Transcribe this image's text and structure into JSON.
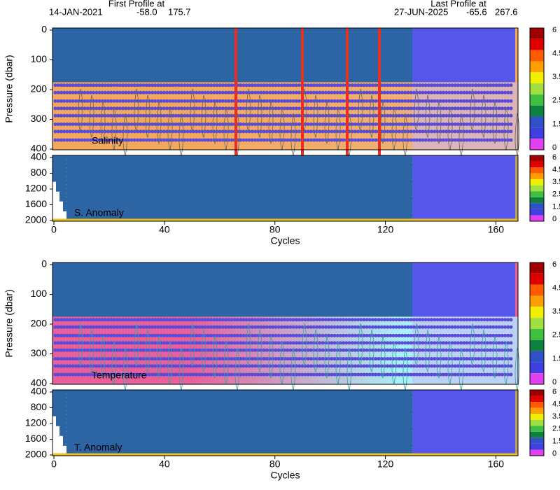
{
  "header": {
    "first_label": "First Profile at",
    "first_date": "14-JAN-2021",
    "first_lat": "-58.0",
    "first_lon": "175.7",
    "last_label": "Last Profile at",
    "last_date": "27-JUN-2025",
    "last_lat": "-65.6",
    "last_lon": "267.6"
  },
  "chart_data": [
    {
      "type": "heatmap",
      "label": "Salinity",
      "ylabel": "Pressure (dbar)",
      "xlim": [
        0,
        168
      ],
      "ylim": [
        0,
        400
      ],
      "yticks": [
        0,
        100,
        200,
        300,
        400
      ],
      "band_colors": [
        "#f4a85c",
        "#f0b070"
      ],
      "colorbar_ticks": [
        6,
        4.5,
        3.5,
        2.5,
        1.5,
        0
      ],
      "colorbar_colors": [
        "#a00000",
        "#e00000",
        "#ff5a00",
        "#ffa000",
        "#f0f000",
        "#a0e040",
        "#40c040",
        "#108040",
        "#3050c8",
        "#4040e0",
        "#e040f0"
      ]
    },
    {
      "type": "heatmap",
      "label": "S. Anomaly",
      "xlabel": "Cycles",
      "xlim": [
        0,
        168
      ],
      "xticks": [
        0,
        40,
        80,
        120,
        160
      ],
      "ylim": [
        400,
        2000
      ],
      "yticks": [
        400,
        800,
        1200,
        1600,
        2000
      ],
      "colorbar_ticks": [
        6,
        4.5,
        3.5,
        2.5,
        1.5,
        0
      ],
      "colorbar_colors": [
        "#a00000",
        "#e00000",
        "#ff5a00",
        "#ffa000",
        "#f0f000",
        "#a0e040",
        "#40c040",
        "#108040",
        "#3050c8",
        "#4040e0",
        "#e040f0"
      ]
    },
    {
      "type": "heatmap",
      "label": "Temperature",
      "ylabel": "Pressure (dbar)",
      "xlim": [
        0,
        168
      ],
      "ylim": [
        0,
        400
      ],
      "yticks": [
        0,
        100,
        200,
        300,
        400
      ],
      "band_colors": [
        "#e8609a",
        "#a8f0f8"
      ],
      "colorbar_ticks": [
        6,
        4.5,
        3.5,
        2.5,
        1.5,
        0
      ],
      "colorbar_colors": [
        "#a00000",
        "#e00000",
        "#ff5a00",
        "#ffa000",
        "#f0f000",
        "#a0e040",
        "#40c040",
        "#108040",
        "#3050c8",
        "#4040e0",
        "#e040f0"
      ]
    },
    {
      "type": "heatmap",
      "label": "T. Anomaly",
      "xlabel": "Cycles",
      "xlim": [
        0,
        168
      ],
      "xticks": [
        0,
        40,
        80,
        120,
        160
      ],
      "ylim": [
        400,
        2000
      ],
      "yticks": [
        400,
        800,
        1200,
        1600,
        2000
      ],
      "colorbar_ticks": [
        6,
        4.5,
        3.5,
        2.5,
        1.5,
        0
      ],
      "colorbar_colors": [
        "#a00000",
        "#e00000",
        "#ff5a00",
        "#ffa000",
        "#f0f000",
        "#a0e040",
        "#40c040",
        "#108040",
        "#3050c8",
        "#4040e0",
        "#e040f0"
      ]
    }
  ]
}
